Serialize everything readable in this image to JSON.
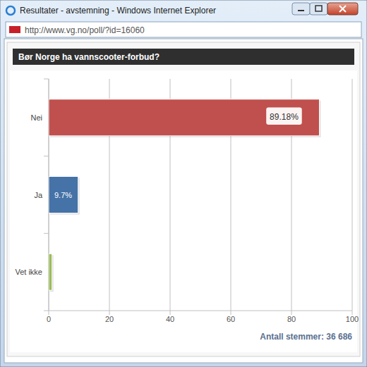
{
  "window": {
    "title": "Resultater - avstemning - Windows Internet Explorer",
    "url": "http://www.vg.no/poll/?id=16060"
  },
  "chart_data": {
    "type": "bar",
    "orientation": "horizontal",
    "title": "Bør Norge ha vannscooter-forbud?",
    "categories": [
      "Nei",
      "Ja",
      "Vet ikke"
    ],
    "values": [
      89.18,
      9.7,
      1.1
    ],
    "value_labels": [
      "89.18%",
      "9.7%",
      null
    ],
    "colors": [
      "#c0504d",
      "#4572a7",
      "#9bbb59"
    ],
    "xlim": [
      0,
      100
    ],
    "xticks": [
      0,
      20,
      40,
      60,
      80,
      100
    ],
    "grid": true,
    "data_labels": true,
    "annotations": [
      "Antall stemmer: 36 686"
    ]
  }
}
